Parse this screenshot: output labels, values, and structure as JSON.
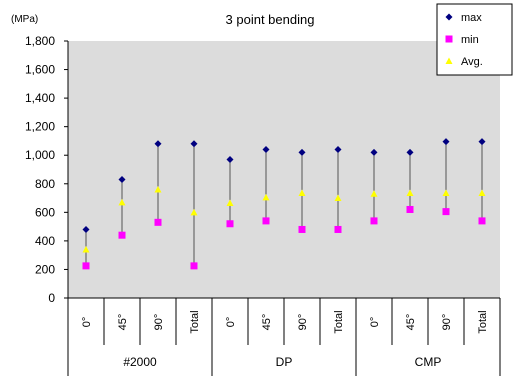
{
  "chart_data": {
    "type": "scatter",
    "title": "3 point bending",
    "unit_label": "(MPa)",
    "ylim": [
      0,
      1800
    ],
    "yticks": [
      "0",
      "200",
      "400",
      "600",
      "800",
      "1,000",
      "1,200",
      "1,400",
      "1,600",
      "1,800"
    ],
    "categories": [
      "0°",
      "45°",
      "90°",
      "Total",
      "0°",
      "45°",
      "90°",
      "Total",
      "0°",
      "45°",
      "90°",
      "Total"
    ],
    "groups": [
      {
        "label": "#2000",
        "span": 4
      },
      {
        "label": "DP",
        "span": 4
      },
      {
        "label": "CMP",
        "span": 4
      }
    ],
    "legend_position": "top-right",
    "grid": false,
    "plot_background": "#dcdcdc",
    "series": [
      {
        "name": "max",
        "color": "#000080",
        "marker": "diamond",
        "values": [
          480,
          830,
          1080,
          1080,
          970,
          1040,
          1020,
          1040,
          1020,
          1020,
          1095,
          1095
        ]
      },
      {
        "name": "min",
        "color": "#ff00ff",
        "marker": "square",
        "values": [
          225,
          440,
          530,
          225,
          520,
          540,
          480,
          480,
          540,
          620,
          605,
          540
        ]
      },
      {
        "name": "Avg.",
        "color": "#ffff00",
        "marker": "triangle",
        "values": [
          340,
          670,
          760,
          600,
          665,
          705,
          735,
          700,
          730,
          735,
          735,
          735
        ]
      }
    ]
  }
}
